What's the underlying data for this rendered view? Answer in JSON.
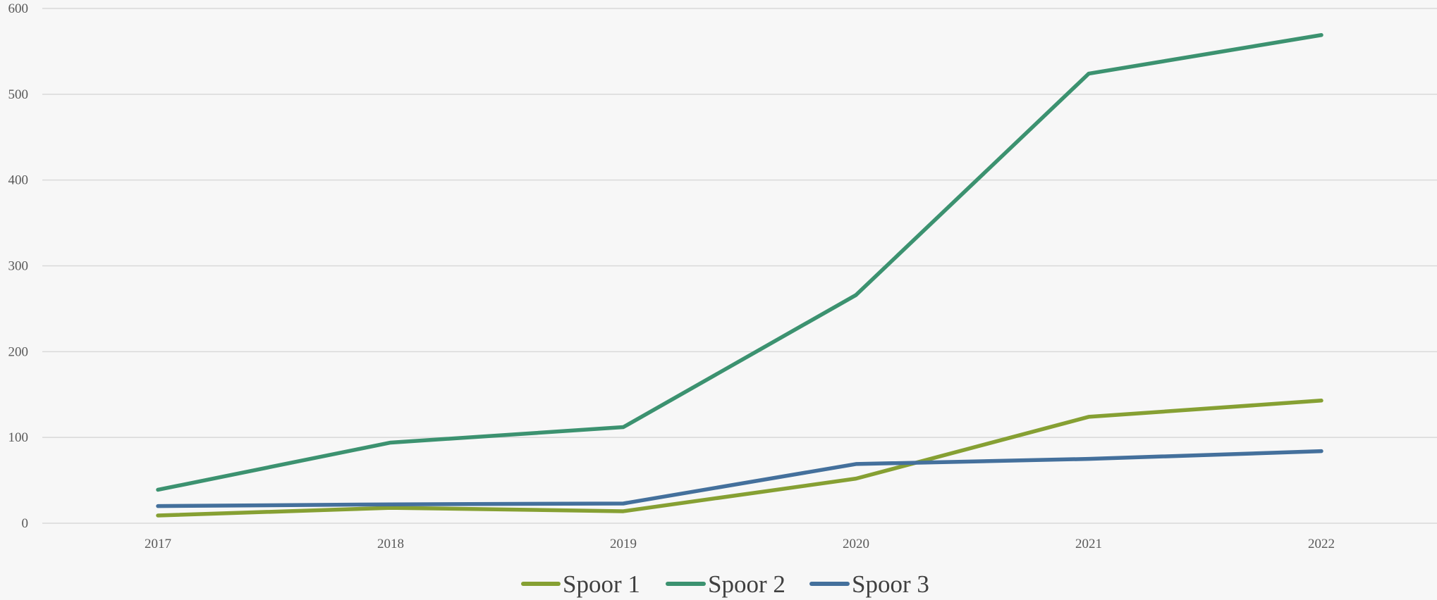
{
  "chart_data": {
    "type": "line",
    "title": "",
    "xlabel": "",
    "ylabel": "",
    "categories": [
      "2017",
      "2018",
      "2019",
      "2020",
      "2021",
      "2022"
    ],
    "ylim": [
      0,
      600
    ],
    "yticks": [
      0,
      100,
      200,
      300,
      400,
      500,
      600
    ],
    "ytick_labels": [
      "0",
      "100",
      "200",
      "300",
      "400",
      "500",
      "600"
    ],
    "grid": true,
    "legend_position": "bottom",
    "series": [
      {
        "name": "Spoor 1",
        "color": "#86A033",
        "values": [
          9,
          18,
          14,
          52,
          124,
          143
        ]
      },
      {
        "name": "Spoor 2",
        "color": "#3C9270",
        "values": [
          39,
          94,
          112,
          266,
          524,
          569
        ]
      },
      {
        "name": "Spoor 3",
        "color": "#44709C",
        "values": [
          20,
          22,
          23,
          69,
          75,
          84
        ]
      }
    ]
  }
}
